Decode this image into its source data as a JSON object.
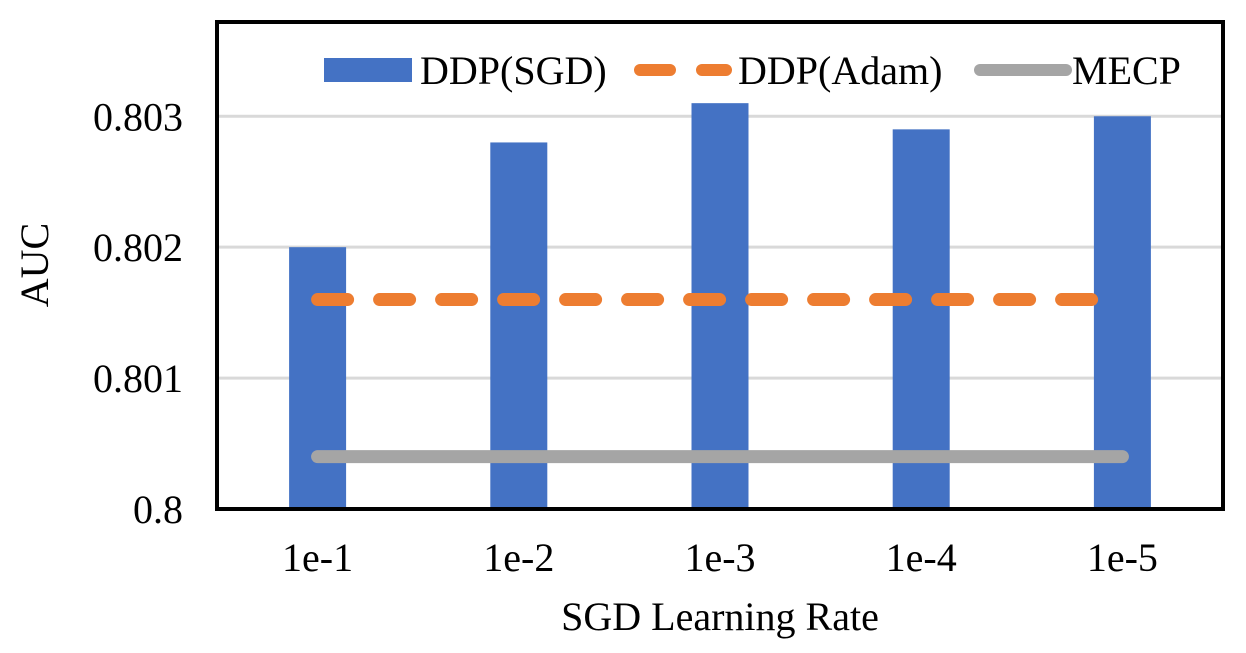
{
  "chart_data": {
    "type": "bar",
    "title": "",
    "xlabel": "SGD Learning Rate",
    "ylabel": "AUC",
    "categories": [
      "1e-1",
      "1e-2",
      "1e-3",
      "1e-4",
      "1e-5"
    ],
    "ylim": [
      0.8,
      0.80372
    ],
    "yticks": [
      0.8,
      0.801,
      0.802,
      0.803
    ],
    "ytick_labels": [
      "0.8",
      "0.801",
      "0.802",
      "0.803"
    ],
    "grid": true,
    "legend_position": "top",
    "series": [
      {
        "name": "DDP(SGD)",
        "kind": "bar",
        "color": "#4472c4",
        "values": [
          0.802,
          0.8028,
          0.8031,
          0.8029,
          0.803
        ]
      },
      {
        "name": "DDP(Adam)",
        "kind": "line",
        "style": "dashed",
        "color": "#ed7d31",
        "values": [
          0.8016,
          0.8016,
          0.8016,
          0.8016,
          0.8016
        ]
      },
      {
        "name": "MECP",
        "kind": "line",
        "style": "solid",
        "color": "#a5a5a5",
        "values": [
          0.8004,
          0.8004,
          0.8004,
          0.8004,
          0.8004
        ]
      }
    ]
  }
}
